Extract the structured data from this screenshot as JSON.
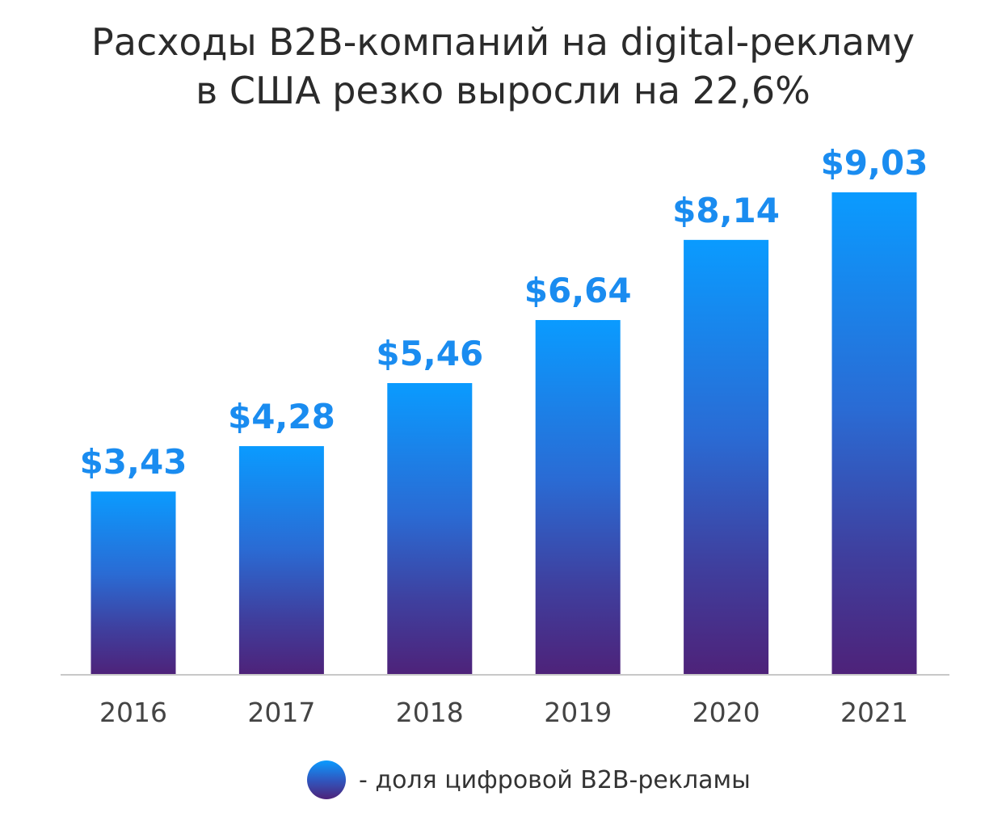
{
  "title": {
    "line1": "Расходы B2B-компаний на digital-рекламу",
    "line2": "в США резко выросли на 22,6%"
  },
  "legend": {
    "label": "- доля цифровой B2B-рекламы",
    "icon": "gradient-circle-icon"
  },
  "colors": {
    "bar_top": "#0a9bff",
    "bar_bottom": "#4e2279",
    "value_label": "#1a8cf0",
    "axis": "#c8c8c8"
  },
  "chart_data": {
    "type": "bar",
    "categories": [
      "2016",
      "2017",
      "2018",
      "2019",
      "2020",
      "2021"
    ],
    "values": [
      3.43,
      4.28,
      5.46,
      6.64,
      8.14,
      9.03
    ],
    "value_labels": [
      "$3,43",
      "$4,28",
      "$5,46",
      "$6,64",
      "$8,14",
      "$9,03"
    ],
    "title": "Расходы B2B-компаний на digital-рекламу в США резко выросли на 22,6%",
    "xlabel": "",
    "ylabel": "",
    "ylim": [
      0,
      9.03
    ],
    "grid": false,
    "legend_position": "bottom"
  }
}
